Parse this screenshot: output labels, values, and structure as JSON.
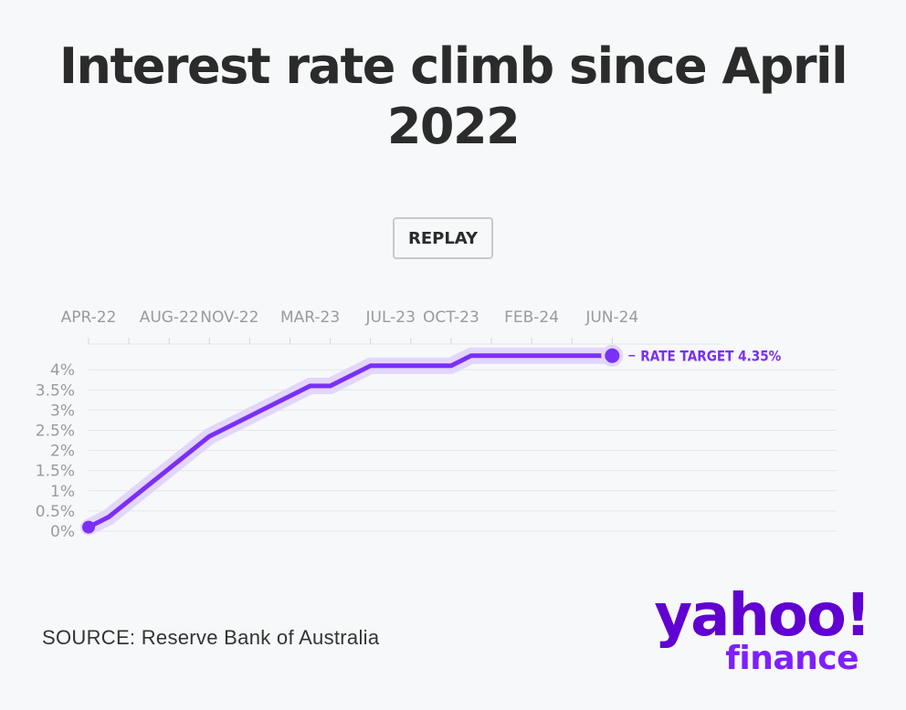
{
  "title": "Interest rate climb since April 2022",
  "replay_label": "REPLAY",
  "source": "SOURCE: Reserve Bank of Australia",
  "logo": {
    "word": "yahoo!",
    "sub": "finance"
  },
  "colors": {
    "line": "#7b2ff7",
    "halo": "#e3d6fb",
    "grid": "#e6e6e8",
    "axis_text": "#9a9a9e",
    "title": "#2b2b2b",
    "brand": "#6001d2"
  },
  "chart_data": {
    "type": "line",
    "x_tick_labels": [
      "APR-22",
      "AUG-22",
      "NOV-22",
      "MAR-23",
      "JUL-23",
      "OCT-23",
      "FEB-24",
      "JUN-24"
    ],
    "x_tick_dates": [
      "2022-04",
      "2022-08",
      "2022-11",
      "2023-03",
      "2023-07",
      "2023-10",
      "2024-02",
      "2024-06"
    ],
    "y_tick_labels": [
      "4%",
      "3.5%",
      "3%",
      "2.5%",
      "2%",
      "1.5%",
      "1%",
      "0.5%",
      "0%"
    ],
    "y_ticks": [
      4,
      3.5,
      3,
      2.5,
      2,
      1.5,
      1,
      0.5,
      0
    ],
    "ylim": [
      0,
      4.35
    ],
    "grid": true,
    "series": [
      {
        "points": [
          {
            "x": "2022-04",
            "y": 0.1
          },
          {
            "x": "2022-05",
            "y": 0.35
          },
          {
            "x": "2022-10",
            "y": 2.35
          },
          {
            "x": "2023-03",
            "y": 3.6
          },
          {
            "x": "2023-04",
            "y": 3.6
          },
          {
            "x": "2023-06",
            "y": 4.1
          },
          {
            "x": "2023-10",
            "y": 4.1
          },
          {
            "x": "2023-11",
            "y": 4.35
          },
          {
            "x": "2024-06",
            "y": 4.35
          }
        ]
      }
    ],
    "end_annotation": "RATE TARGET 4.35%"
  }
}
